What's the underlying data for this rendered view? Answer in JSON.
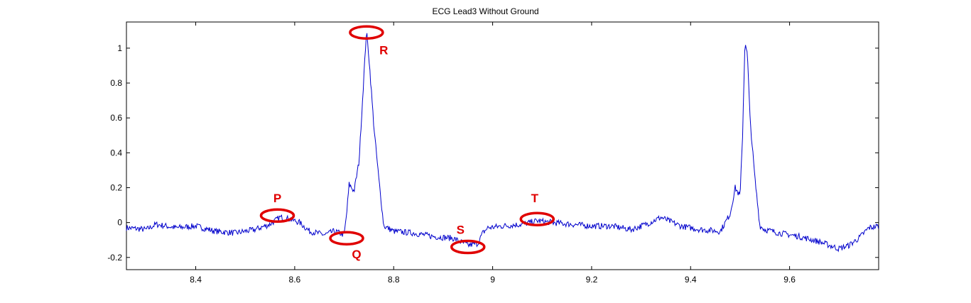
{
  "chart_data": {
    "type": "line",
    "title": "ECG Lead3 Without Ground",
    "xlabel": "",
    "ylabel": "",
    "xlim": [
      8.26,
      9.78
    ],
    "ylim": [
      -0.27,
      1.15
    ],
    "x_ticks": [
      8.4,
      8.6,
      8.8,
      9,
      9.2,
      9.4,
      9.6
    ],
    "x_tick_labels": [
      "8.4",
      "8.6",
      "8.8",
      "9",
      "9.2",
      "9.4",
      "9.6"
    ],
    "y_ticks": [
      -0.2,
      0,
      0.2,
      0.4,
      0.6,
      0.8,
      1
    ],
    "y_tick_labels": [
      "-0.2",
      "0",
      "0.2",
      "0.4",
      "0.6",
      "0.8",
      "1"
    ],
    "grid": false,
    "line_color": "#0000cc",
    "annotation_color": "#e00000",
    "series": [
      {
        "x": [
          8.26,
          8.3,
          8.32,
          8.36,
          8.4,
          8.44,
          8.48,
          8.52,
          8.55,
          8.57,
          8.59,
          8.61,
          8.63,
          8.66,
          8.68,
          8.7,
          8.705,
          8.71,
          8.72,
          8.73,
          8.74,
          8.745,
          8.75,
          8.76,
          8.77,
          8.78,
          8.8,
          8.84,
          8.88,
          8.92,
          8.95,
          8.97,
          8.98,
          8.99,
          9.02,
          9.06,
          9.09,
          9.12,
          9.16,
          9.2,
          9.24,
          9.28,
          9.31,
          9.34,
          9.38,
          9.42,
          9.46,
          9.48,
          9.49,
          9.5,
          9.505,
          9.51,
          9.515,
          9.52,
          9.53,
          9.54,
          9.55,
          9.58,
          9.62,
          9.66,
          9.7,
          9.72,
          9.74,
          9.76,
          9.78
        ],
        "y": [
          -0.03,
          -0.04,
          -0.01,
          -0.03,
          -0.02,
          -0.05,
          -0.06,
          -0.04,
          -0.01,
          0.03,
          0.02,
          0.0,
          -0.05,
          -0.07,
          -0.05,
          -0.07,
          0.05,
          0.22,
          0.18,
          0.35,
          0.85,
          1.1,
          0.95,
          0.55,
          0.25,
          -0.02,
          -0.05,
          -0.06,
          -0.08,
          -0.09,
          -0.13,
          -0.12,
          -0.06,
          -0.03,
          -0.02,
          -0.01,
          0.01,
          0.0,
          -0.01,
          -0.02,
          -0.02,
          -0.04,
          -0.01,
          0.03,
          -0.02,
          -0.04,
          -0.05,
          0.05,
          0.2,
          0.15,
          0.5,
          1.05,
          0.95,
          0.6,
          0.25,
          -0.02,
          -0.04,
          -0.06,
          -0.08,
          -0.11,
          -0.15,
          -0.13,
          -0.09,
          -0.03,
          -0.02
        ]
      }
    ],
    "annotations": [
      {
        "label": "P",
        "x": 8.565,
        "y": 0.04,
        "label_x": 8.565,
        "label_y": 0.14
      },
      {
        "label": "Q",
        "x": 8.705,
        "y": -0.09,
        "label_x": 8.725,
        "label_y": -0.18
      },
      {
        "label": "R",
        "x": 8.745,
        "y": 1.09,
        "label_x": 8.78,
        "label_y": 0.99
      },
      {
        "label": "S",
        "x": 8.95,
        "y": -0.14,
        "label_x": 8.935,
        "label_y": -0.04
      },
      {
        "label": "T",
        "x": 9.09,
        "y": 0.02,
        "label_x": 9.085,
        "label_y": 0.14
      }
    ]
  }
}
